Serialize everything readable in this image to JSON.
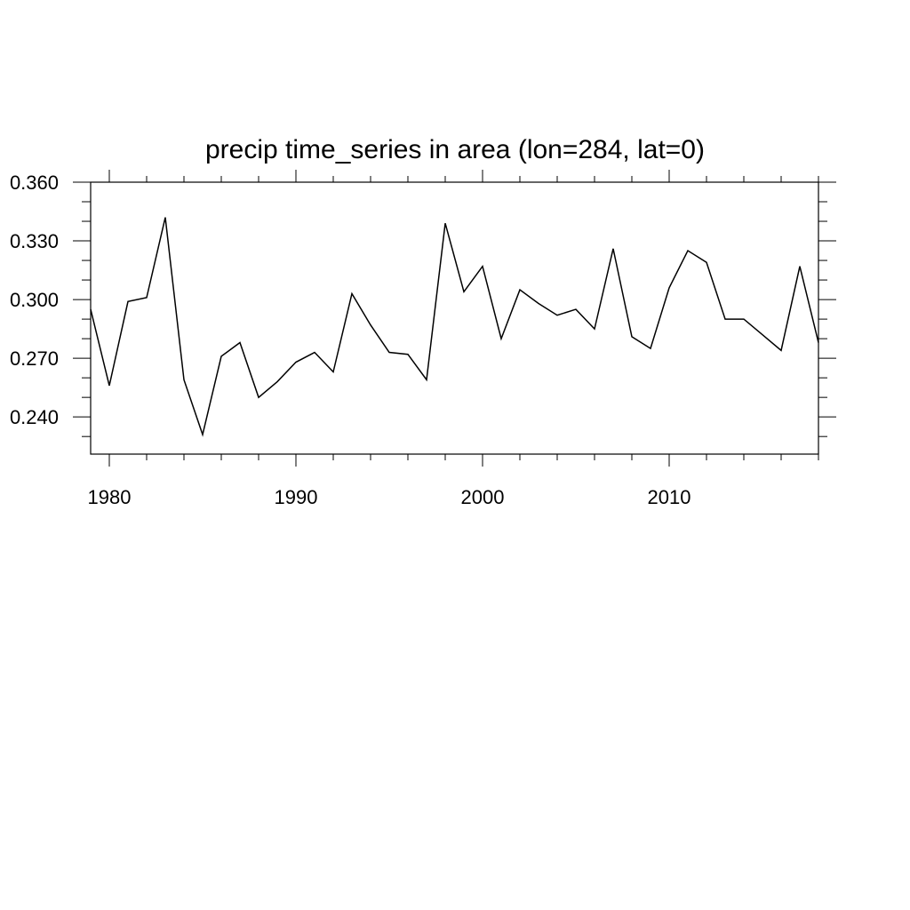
{
  "chart_data": {
    "type": "line",
    "title": "precip time_series in area (lon=284, lat=0)",
    "xlabel": "",
    "ylabel": "",
    "xlim": [
      1979,
      2018
    ],
    "ylim": [
      0.221,
      0.36
    ],
    "x_ticks": [
      1980,
      1990,
      2000,
      2010
    ],
    "x_tick_labels": [
      "1980",
      "1990",
      "2000",
      "2010"
    ],
    "y_ticks": [
      0.24,
      0.27,
      0.3,
      0.33,
      0.36
    ],
    "y_tick_labels": [
      "0.240",
      "0.270",
      "0.300",
      "0.330",
      "0.360"
    ],
    "grid": false,
    "line_color": "#000000",
    "series": [
      {
        "x": [
          1979,
          1980,
          1981,
          1982,
          1983,
          1984,
          1985,
          1986,
          1987,
          1988,
          1989,
          1990,
          1991,
          1992,
          1993,
          1994,
          1995,
          1996,
          1997,
          1998,
          1999,
          2000,
          2001,
          2002,
          2003,
          2004,
          2005,
          2006,
          2007,
          2008,
          2009,
          2010,
          2011,
          2012,
          2013,
          2014,
          2015,
          2016,
          2017,
          2018
        ],
        "values": [
          0.295,
          0.256,
          0.299,
          0.301,
          0.342,
          0.259,
          0.231,
          0.271,
          0.278,
          0.25,
          0.258,
          0.268,
          0.273,
          0.263,
          0.303,
          0.287,
          0.273,
          0.272,
          0.259,
          0.339,
          0.304,
          0.317,
          0.28,
          0.305,
          0.298,
          0.292,
          0.295,
          0.285,
          0.326,
          0.281,
          0.275,
          0.306,
          0.325,
          0.319,
          0.29,
          0.29,
          0.282,
          0.274,
          0.317,
          0.278
        ]
      }
    ]
  }
}
